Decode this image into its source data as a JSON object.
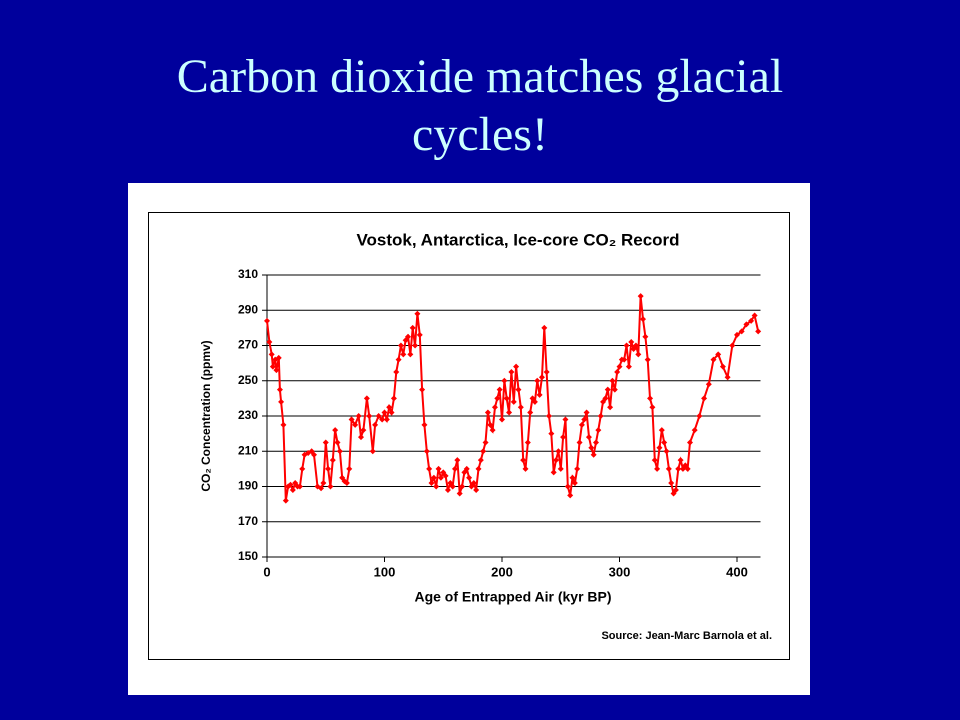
{
  "slide_title": "Carbon dioxide matches glacial cycles!",
  "chart_data": {
    "type": "line",
    "title": "Vostok, Antarctica, Ice-core CO₂ Record",
    "x_label": "Age of Entrapped Air (kyr BP)",
    "y_label": "CO₂ Concentration (ppmv)",
    "source": "Source: Jean-Marc Barnola et al.",
    "color": "#ff0000",
    "grid": true,
    "xlim": [
      0,
      420
    ],
    "xticks": [
      0,
      100,
      200,
      300,
      400
    ],
    "ylim": [
      150,
      310
    ],
    "yticks": [
      150,
      170,
      190,
      210,
      230,
      250,
      270,
      290,
      310
    ],
    "x": [
      0,
      2,
      4,
      5,
      7,
      8,
      10,
      11,
      12,
      14,
      16,
      18,
      20,
      22,
      24,
      26,
      28,
      30,
      32,
      35,
      38,
      40,
      43,
      46,
      48,
      50,
      52,
      54,
      56,
      58,
      60,
      62,
      64,
      66,
      68,
      70,
      72,
      75,
      78,
      80,
      82,
      85,
      87,
      90,
      92,
      95,
      98,
      100,
      102,
      104,
      106,
      108,
      110,
      112,
      114,
      116,
      118,
      120,
      122,
      124,
      126,
      128,
      130,
      132,
      134,
      136,
      138,
      140,
      142,
      144,
      146,
      148,
      150,
      152,
      154,
      156,
      158,
      160,
      162,
      164,
      166,
      168,
      170,
      172,
      174,
      176,
      178,
      180,
      182,
      184,
      186,
      188,
      190,
      192,
      194,
      196,
      198,
      200,
      202,
      204,
      206,
      208,
      210,
      212,
      214,
      216,
      218,
      220,
      222,
      224,
      226,
      228,
      230,
      232,
      234,
      236,
      238,
      240,
      242,
      244,
      246,
      248,
      250,
      252,
      254,
      256,
      258,
      260,
      262,
      264,
      266,
      268,
      270,
      272,
      274,
      276,
      278,
      280,
      282,
      284,
      286,
      288,
      290,
      292,
      294,
      296,
      298,
      300,
      302,
      304,
      306,
      308,
      310,
      312,
      314,
      316,
      318,
      320,
      322,
      324,
      326,
      328,
      330,
      332,
      334,
      336,
      338,
      340,
      342,
      344,
      346,
      348,
      350,
      352,
      354,
      356,
      358,
      360,
      364,
      368,
      372,
      376,
      380,
      384,
      388,
      392,
      396,
      400,
      404,
      408,
      412,
      415,
      418
    ],
    "values": [
      284,
      272,
      265,
      258,
      262,
      256,
      263,
      245,
      238,
      225,
      182,
      190,
      191,
      188,
      192,
      190,
      190,
      200,
      208,
      209,
      210,
      208,
      190,
      189,
      192,
      215,
      200,
      190,
      205,
      222,
      215,
      210,
      195,
      193,
      192,
      200,
      228,
      225,
      230,
      218,
      222,
      240,
      230,
      210,
      225,
      230,
      228,
      232,
      228,
      235,
      232,
      240,
      255,
      262,
      270,
      265,
      273,
      275,
      265,
      280,
      270,
      288,
      276,
      245,
      225,
      210,
      200,
      192,
      195,
      190,
      200,
      195,
      198,
      196,
      188,
      192,
      190,
      200,
      205,
      186,
      190,
      198,
      200,
      195,
      190,
      192,
      188,
      200,
      205,
      210,
      215,
      232,
      225,
      222,
      235,
      240,
      245,
      228,
      250,
      240,
      232,
      255,
      238,
      258,
      245,
      235,
      205,
      200,
      215,
      232,
      240,
      238,
      250,
      242,
      252,
      280,
      255,
      230,
      220,
      198,
      205,
      210,
      200,
      218,
      228,
      190,
      185,
      195,
      192,
      200,
      215,
      225,
      228,
      232,
      218,
      212,
      208,
      215,
      222,
      230,
      238,
      240,
      245,
      235,
      250,
      245,
      255,
      258,
      262,
      262,
      270,
      258,
      272,
      268,
      270,
      265,
      298,
      285,
      275,
      262,
      240,
      235,
      205,
      200,
      212,
      222,
      215,
      210,
      200,
      192,
      186,
      188,
      200,
      205,
      200,
      202,
      200,
      215,
      222,
      230,
      240,
      248,
      262,
      265,
      258,
      252,
      270,
      276,
      278,
      282,
      284,
      287,
      278
    ]
  }
}
